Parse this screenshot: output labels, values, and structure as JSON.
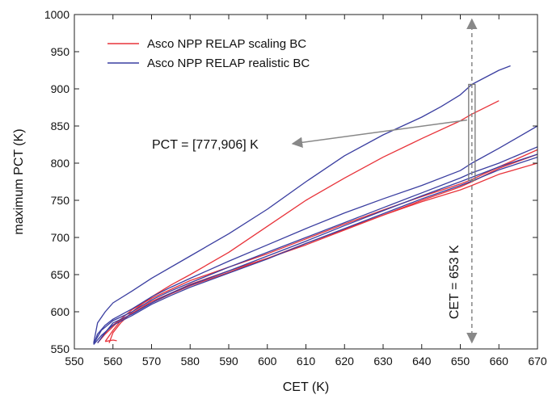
{
  "chart_data": {
    "type": "line",
    "title": "",
    "xlabel": "CET (K)",
    "ylabel": "maximum PCT (K)",
    "xlim": [
      550,
      670
    ],
    "ylim": [
      550,
      1000
    ],
    "xticks": [
      550,
      560,
      570,
      580,
      590,
      600,
      610,
      620,
      630,
      640,
      650,
      660,
      670
    ],
    "yticks": [
      550,
      600,
      650,
      700,
      750,
      800,
      850,
      900,
      950,
      1000
    ],
    "grid": false,
    "legend_position": "top-left",
    "colors": {
      "scaling": "#e8333a",
      "realistic": "#3a3ea0",
      "annotation": "#888888"
    },
    "series": [
      {
        "name": "Asco NPP RELAP scaling BC",
        "color": "#e8333a",
        "runs": [
          {
            "x": [
              559,
              560,
              562,
              565,
              570,
              575,
              580,
              590,
              600,
              610,
              620,
              630,
              640,
              650,
              653,
              660
            ],
            "y": [
              558,
              572,
              585,
              600,
              620,
              636,
              650,
              680,
              715,
              750,
              780,
              808,
              833,
              857,
              866,
              884
            ]
          },
          {
            "x": [
              557,
              559,
              562,
              565,
              570,
              575,
              580,
              590,
              600,
              610,
              620,
              630,
              640,
              650,
              653,
              660,
              670
            ],
            "y": [
              565,
              578,
              590,
              603,
              618,
              630,
              642,
              660,
              678,
              698,
              718,
              737,
              755,
              772,
              778,
              795,
              818
            ]
          },
          {
            "x": [
              558,
              560,
              562,
              565,
              570,
              575,
              580,
              590,
              600,
              610,
              620,
              630,
              640,
              650,
              653,
              660,
              670
            ],
            "y": [
              560,
              575,
              588,
              598,
              614,
              625,
              637,
              655,
              672,
              692,
              711,
              730,
              748,
              764,
              770,
              785,
              800
            ]
          },
          {
            "x": [
              556,
              558,
              561,
              565,
              570,
              575,
              580,
              590,
              600,
              610,
              620,
              630,
              640,
              650,
              653,
              660,
              670
            ],
            "y": [
              558,
              570,
              585,
              598,
              612,
              624,
              635,
              653,
              672,
              690,
              710,
              730,
              750,
              768,
              775,
              793,
              812
            ]
          },
          {
            "x": [
              558,
              560,
              561
            ],
            "y": [
              560,
              562,
              561
            ]
          }
        ]
      },
      {
        "name": "Asco NPP RELAP realistic BC",
        "color": "#3a3ea0",
        "runs": [
          {
            "x": [
              555,
              556,
              558,
              560,
              565,
              570,
              580,
              590,
              600,
              610,
              620,
              630,
              640,
              645,
              650,
              653,
              660,
              663
            ],
            "y": [
              558,
              585,
              600,
              612,
              628,
              645,
              675,
              705,
              738,
              775,
              810,
              838,
              862,
              876,
              892,
              906,
              925,
              931
            ]
          },
          {
            "x": [
              555,
              556,
              558,
              560,
              565,
              570,
              575,
              580,
              590,
              600,
              610,
              620,
              630,
              640,
              650,
              653,
              660,
              670
            ],
            "y": [
              556,
              570,
              582,
              590,
              604,
              620,
              633,
              645,
              668,
              690,
              712,
              733,
              752,
              770,
              790,
              800,
              820,
              850
            ]
          },
          {
            "x": [
              555,
              557,
              560,
              565,
              570,
              575,
              580,
              590,
              600,
              610,
              620,
              630,
              640,
              650,
              653,
              660,
              670
            ],
            "y": [
              557,
              575,
              588,
              600,
              616,
              628,
              639,
              660,
              680,
              700,
              720,
              740,
              760,
              780,
              787,
              800,
              822
            ]
          },
          {
            "x": [
              556,
              558,
              560,
              565,
              570,
              575,
              580,
              590,
              600,
              610,
              620,
              630,
              640,
              650,
              653,
              660,
              670
            ],
            "y": [
              558,
              572,
              585,
              597,
              612,
              625,
              636,
              655,
              675,
              695,
              716,
              736,
              756,
              775,
              781,
              795,
              812
            ]
          },
          {
            "x": [
              555,
              557,
              560,
              565,
              570,
              575,
              580,
              590,
              600,
              610,
              620,
              630,
              640,
              650,
              653,
              660,
              670
            ],
            "y": [
              556,
              568,
              582,
              595,
              610,
              622,
              633,
              652,
              671,
              692,
              712,
              732,
              752,
              770,
              776,
              791,
              808
            ]
          }
        ]
      }
    ],
    "annotations": {
      "pct_text": "PCT = [777,906] K",
      "cet_text": "CET = 653 K",
      "cet_value": 653,
      "pct_range": [
        777,
        906
      ]
    }
  }
}
